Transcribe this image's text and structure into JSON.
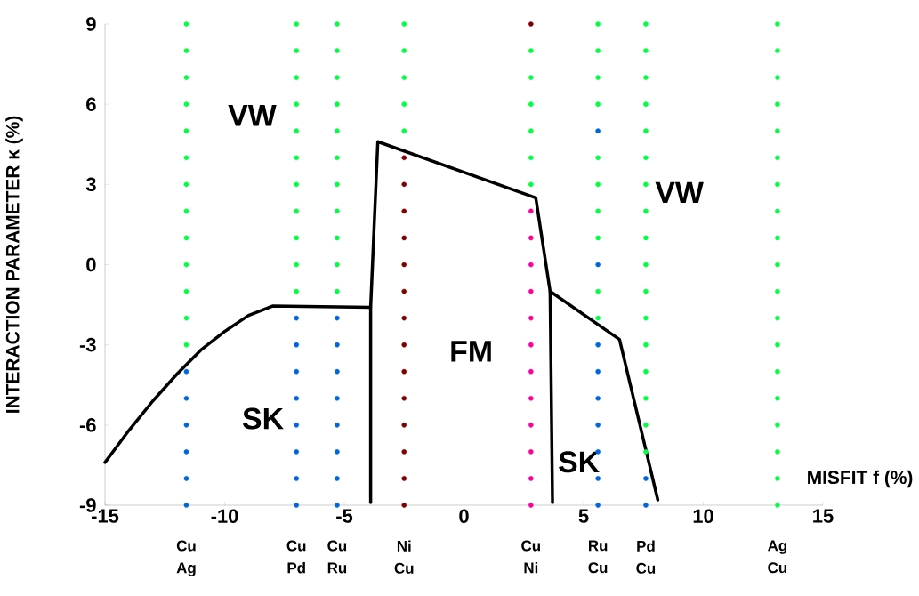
{
  "chart_data": {
    "type": "scatter",
    "xlabel": "MISFIT f (%)",
    "ylabel": "INTERACTION PARAMETER κ (%)",
    "xlim": [
      -15,
      15
    ],
    "ylim": [
      -9,
      9
    ],
    "xticks": [
      -15,
      -10,
      -5,
      0,
      5,
      10,
      15
    ],
    "yticks": [
      -9,
      -6,
      -3,
      0,
      3,
      6,
      9
    ],
    "marker": "circle",
    "series": [
      {
        "color": "#00ff40",
        "x": [
          -11.6,
          -11.6,
          -11.6,
          -11.6,
          -11.6,
          -11.6,
          -11.6,
          -11.6,
          -11.6,
          -11.6,
          -11.6,
          -11.6,
          -11.6,
          -7.0,
          -7.0,
          -7.0,
          -7.0,
          -7.0,
          -7.0,
          -7.0,
          -7.0,
          -7.0,
          -7.0,
          -7.0,
          -5.3,
          -5.3,
          -5.3,
          -5.3,
          -5.3,
          -5.3,
          -5.3,
          -5.3,
          -5.3,
          -5.3,
          -5.3,
          -2.5,
          -2.5,
          -2.5,
          -2.5,
          -2.5,
          2.8,
          2.8,
          2.8,
          2.8,
          2.8,
          2.8,
          5.6,
          5.6,
          5.6,
          5.6,
          5.6,
          5.6,
          5.6,
          5.6,
          5.6,
          5.6,
          7.6,
          7.6,
          7.6,
          7.6,
          7.6,
          7.6,
          7.6,
          7.6,
          7.6,
          7.6,
          7.6,
          7.6,
          7.6,
          7.6,
          7.6,
          7.6,
          7.6,
          13.1,
          13.1,
          13.1,
          13.1,
          13.1,
          13.1,
          13.1,
          13.1,
          13.1,
          13.1,
          13.1,
          13.1,
          13.1,
          13.1,
          13.1,
          13.1,
          13.1,
          13.1,
          13.1
        ],
        "values": [
          9,
          8,
          7,
          6,
          5,
          4,
          3,
          2,
          1,
          0,
          -1,
          -2,
          -3,
          9,
          8,
          7,
          6,
          5,
          4,
          3,
          2,
          1,
          0,
          -1,
          9,
          8,
          7,
          6,
          5,
          4,
          3,
          2,
          1,
          0,
          -1,
          9,
          8,
          7,
          6,
          5,
          8,
          7,
          6,
          5,
          4,
          3,
          9,
          8,
          7,
          6,
          4,
          3,
          2,
          1,
          -1,
          -2,
          9,
          8,
          7,
          6,
          5,
          4,
          3,
          2,
          1,
          0,
          -1,
          -2,
          -3,
          -4,
          -5,
          -6,
          -7,
          9,
          8,
          7,
          6,
          5,
          4,
          3,
          2,
          1,
          0,
          -1,
          -2,
          -3,
          -4,
          -5,
          -6,
          -7,
          -8,
          -9
        ]
      },
      {
        "color": "#0066dd",
        "x": [
          -11.6,
          -11.6,
          -11.6,
          -11.6,
          -11.6,
          -11.6,
          -7.0,
          -7.0,
          -7.0,
          -7.0,
          -7.0,
          -7.0,
          -7.0,
          -7.0,
          -5.3,
          -5.3,
          -5.3,
          -5.3,
          -5.3,
          -5.3,
          -5.3,
          -5.3,
          5.6,
          5.6,
          5.6,
          5.6,
          5.6,
          5.6,
          5.6,
          5.6,
          5.6,
          7.6,
          7.6
        ],
        "values": [
          -4,
          -5,
          -6,
          -7,
          -8,
          -9,
          -2,
          -3,
          -4,
          -5,
          -6,
          -7,
          -8,
          -9,
          -2,
          -3,
          -4,
          -5,
          -6,
          -7,
          -8,
          -9,
          5,
          0,
          -3,
          -4,
          -5,
          -6,
          -7,
          -8,
          -9,
          -8,
          -9
        ]
      },
      {
        "color": "#800000",
        "x": [
          -2.5,
          -2.5,
          -2.5,
          -2.5,
          -2.5,
          -2.5,
          -2.5,
          -2.5,
          -2.5,
          -2.5,
          -2.5,
          -2.5,
          -2.5,
          -2.5,
          2.8
        ],
        "values": [
          4,
          3,
          2,
          1,
          0,
          -1,
          -2,
          -3,
          -4,
          -5,
          -6,
          -7,
          -8,
          -9,
          9
        ]
      },
      {
        "color": "#ff0099",
        "x": [
          2.8,
          2.8,
          2.8,
          2.8,
          2.8,
          2.8,
          2.8,
          2.8,
          2.8,
          2.8,
          2.8,
          2.8
        ],
        "values": [
          2,
          1,
          0,
          -1,
          -2,
          -3,
          -4,
          -5,
          -6,
          -7,
          -8,
          -9
        ]
      },
      {
        "type": "line",
        "marker": "none",
        "color": "#000000",
        "x": [
          -15,
          -14,
          -13,
          -12,
          -11,
          -10,
          -9,
          -8,
          -3.9
        ],
        "values": [
          -7.4,
          -6.2,
          -5.1,
          -4.1,
          -3.2,
          -2.5,
          -1.9,
          -1.55,
          -1.6
        ]
      },
      {
        "type": "line",
        "marker": "none",
        "color": "#000000",
        "x": [
          -3.9,
          -3.9,
          -3.6,
          3.0,
          3.6,
          6.5,
          8.1
        ],
        "values": [
          -8.9,
          -1.6,
          4.6,
          2.5,
          -1.0,
          -2.8,
          -8.8
        ]
      },
      {
        "type": "line",
        "marker": "none",
        "color": "#000000",
        "x": [
          3.6,
          3.7
        ],
        "values": [
          -1.0,
          -8.9
        ]
      }
    ],
    "annotations": [
      "VW",
      "VW",
      "SK",
      "SK",
      "FM",
      "Cu Ag",
      "Cu Pd",
      "Cu Ru",
      "Ni Cu",
      "Cu Ni",
      "Ru Cu",
      "Pd Cu",
      "Ag Cu"
    ]
  }
}
